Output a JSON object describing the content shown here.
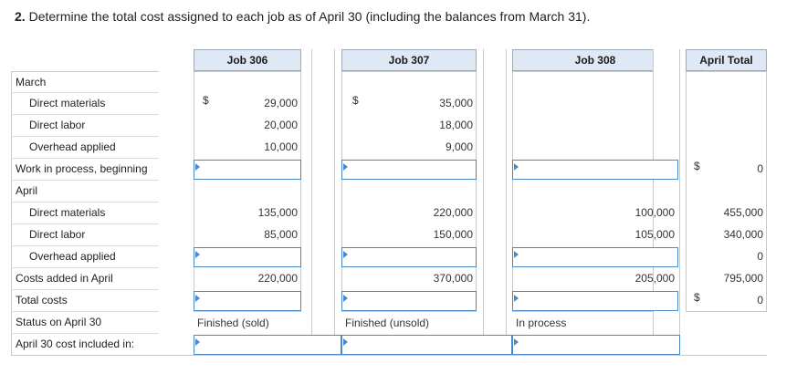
{
  "question": {
    "number": "2.",
    "text": "Determine the total cost assigned to each job as of April 30 (including the balances from March 31)."
  },
  "headers": {
    "job306": "Job 306",
    "job307": "Job 307",
    "job308": "Job 308",
    "total": "April Total"
  },
  "labels": {
    "march": "March",
    "dm": "Direct materials",
    "dl": "Direct labor",
    "oh": "Overhead applied",
    "wip": "Work in process, beginning",
    "april": "April",
    "dm2": "Direct materials",
    "dl2": "Direct labor",
    "oh2": "Overhead applied",
    "added": "Costs added in April",
    "total": "Total costs",
    "status": "Status on April 30",
    "included": "April 30 cost included in:"
  },
  "currency": "$",
  "job306": {
    "dm": "29,000",
    "dl": "20,000",
    "oh": "10,000",
    "dm2": "135,000",
    "dl2": "85,000",
    "added": "220,000",
    "status": "Finished (sold)"
  },
  "job307": {
    "dm": "35,000",
    "dl": "18,000",
    "oh": "9,000",
    "dm2": "220,000",
    "dl2": "150,000",
    "added": "370,000",
    "status": "Finished (unsold)"
  },
  "job308": {
    "dm2": "100,000",
    "dl2": "105,000",
    "added": "205,000",
    "status": "In process"
  },
  "april_total": {
    "wip": "0",
    "dm2": "455,000",
    "dl2": "340,000",
    "oh2": "0",
    "added": "795,000",
    "total": "0"
  }
}
